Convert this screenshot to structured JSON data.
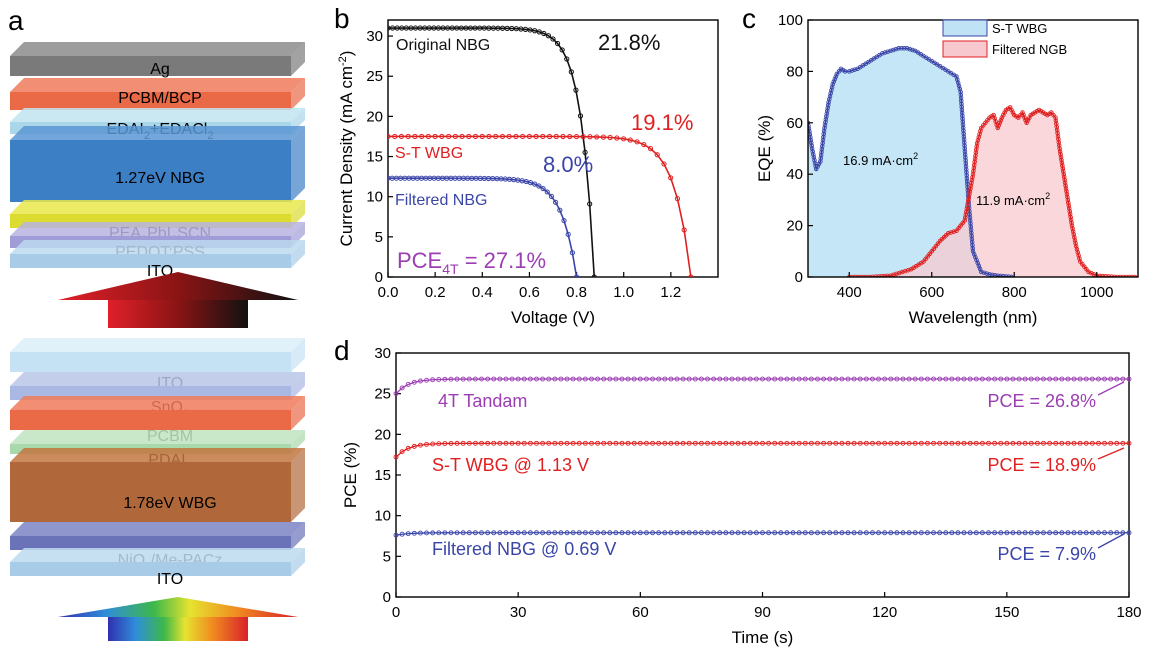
{
  "panel_a": {
    "letter": "a",
    "nbg_stack": [
      {
        "label": "Ag",
        "sub": "",
        "tail": ""
      },
      {
        "label": "PCBM/BCP",
        "sub": "",
        "tail": ""
      },
      {
        "label": "EDAI",
        "sub": "2",
        "tail": "+EDACl",
        "sub2": "2"
      },
      {
        "label": "1.27eV NBG",
        "sub": "",
        "tail": ""
      },
      {
        "label": "PEA",
        "sub": "2",
        "tail": "PbI",
        "sub2": "3",
        "tail2": "SCN"
      },
      {
        "label": "PEDOT:PSS",
        "sub": "",
        "tail": ""
      },
      {
        "label": "ITO",
        "sub": "",
        "tail": ""
      }
    ],
    "wbg_stack": [
      {
        "label": "ITO",
        "sub": "",
        "tail": ""
      },
      {
        "label": "SnO",
        "sub": "2",
        "tail": ""
      },
      {
        "label": "PCBM",
        "sub": "",
        "tail": ""
      },
      {
        "label": "PDAI",
        "sub": "2",
        "tail": ""
      },
      {
        "label": "1.78eV WBG",
        "sub": "",
        "tail": ""
      },
      {
        "label": "NiO",
        "sub": "x",
        "tail": "/Me-PACz"
      },
      {
        "label": "ITO",
        "sub": "",
        "tail": ""
      }
    ],
    "colors": {
      "ag": "#8c8c8c",
      "pcbm": "#f07a5a",
      "edai": "#bfe4f0",
      "nbg": "#3d7fc4",
      "pea": "#e8e84a",
      "pedot": "#b7b3e0",
      "ito": "#bcd9ef",
      "sno2": "#b9c6e8",
      "pdai": "#bfe3c0",
      "wbg": "#b0683a",
      "nio": "#7b83c4"
    }
  },
  "chart_data": [
    {
      "panel": "b",
      "type": "line",
      "xlabel": "Voltage (V)",
      "ylabel": "Current Density (mA cm",
      "ylabel_sup": "-2",
      "ylabel_tail": ")",
      "xlim": [
        0,
        1.4
      ],
      "ylim": [
        0,
        32
      ],
      "xticks": [
        0.0,
        0.2,
        0.4,
        0.6,
        0.8,
        1.0,
        1.2
      ],
      "xtick_labels": [
        "0.0",
        "0.2",
        "0.4",
        "0.6",
        "0.8",
        "1.0",
        "1.2"
      ],
      "yticks": [
        0,
        5,
        10,
        15,
        20,
        25,
        30
      ],
      "series": [
        {
          "name": "Original NBG",
          "color": "#111111",
          "jsc": 31.0,
          "voc": 0.875,
          "n": 1.6,
          "x_end": 0.875
        },
        {
          "name": "S-T WBG",
          "color": "#e02020",
          "jsc": 17.5,
          "voc": 1.285,
          "n": 2.0,
          "x_end": 1.285
        },
        {
          "name": "Filtered NBG",
          "color": "#3a45a8",
          "jsc": 12.3,
          "voc": 0.8,
          "n": 1.8,
          "x_end": 0.8
        }
      ],
      "annotations": [
        {
          "text": "21.8%",
          "color": "#111111"
        },
        {
          "text": "19.1%",
          "color": "#e02020"
        },
        {
          "text": "8.0%",
          "color": "#3a45a8"
        }
      ],
      "pce_label": "PCE",
      "pce_sub": "4T",
      "pce_value": " = 27.1%",
      "pce_color": "#9b3db3"
    },
    {
      "panel": "c",
      "type": "area",
      "xlabel": "Wavelength (nm)",
      "ylabel": "EQE (%)",
      "xlim": [
        300,
        1100
      ],
      "ylim": [
        0,
        100
      ],
      "xticks": [
        400,
        600,
        800,
        1000
      ],
      "yticks": [
        0,
        20,
        40,
        60,
        80,
        100
      ],
      "legend": [
        {
          "name": "S-T WBG",
          "fill": "#bfe3f5",
          "stroke": "#3a45a8"
        },
        {
          "name": "Filtered NGB",
          "fill": "#f7c9cf",
          "stroke": "#e02020"
        }
      ],
      "legend_position": "top-right",
      "series": [
        {
          "name": "S-T WBG",
          "x": [
            300,
            310,
            320,
            330,
            340,
            350,
            360,
            370,
            380,
            390,
            400,
            420,
            440,
            460,
            480,
            500,
            520,
            540,
            560,
            580,
            600,
            620,
            640,
            660,
            670,
            680,
            690,
            700,
            720,
            740,
            760,
            780,
            800
          ],
          "y": [
            60,
            50,
            42,
            45,
            58,
            68,
            75,
            79,
            81,
            80,
            80,
            81,
            83,
            85,
            87,
            88,
            89,
            89,
            88,
            86,
            84,
            82,
            80,
            78,
            72,
            50,
            28,
            10,
            2,
            1,
            0.5,
            0.2,
            0
          ]
        },
        {
          "name": "Filtered NGB",
          "x": [
            400,
            450,
            500,
            550,
            580,
            600,
            620,
            640,
            660,
            680,
            700,
            710,
            720,
            730,
            740,
            750,
            760,
            770,
            780,
            790,
            800,
            810,
            820,
            830,
            840,
            850,
            860,
            870,
            880,
            890,
            900,
            910,
            920,
            930,
            940,
            950,
            960,
            980,
            1000,
            1050,
            1100
          ],
          "y": [
            0,
            0,
            0.5,
            3,
            6,
            10,
            14,
            17,
            18,
            22,
            40,
            52,
            58,
            60,
            62,
            63,
            58,
            62,
            65,
            66,
            63,
            62,
            64,
            60,
            63,
            64,
            65,
            64,
            63,
            64,
            62,
            50,
            40,
            30,
            20,
            12,
            6,
            2,
            0.5,
            0,
            0
          ]
        }
      ],
      "annotations": [
        {
          "text": "16.9 mA·cm",
          "sup": "2"
        },
        {
          "text": "11.9 mA·cm",
          "sup": "2"
        }
      ]
    },
    {
      "panel": "d",
      "type": "line",
      "xlabel": "Time (s)",
      "ylabel": "PCE (%)",
      "xlim": [
        0,
        180
      ],
      "ylim": [
        0,
        30
      ],
      "xticks": [
        0,
        30,
        60,
        90,
        120,
        150,
        180
      ],
      "yticks": [
        0,
        5,
        10,
        15,
        20,
        25,
        30
      ],
      "series": [
        {
          "name": "4T Tandam",
          "color": "#9b3db3",
          "start": 25.0,
          "plateau": 26.8
        },
        {
          "name": "S-T WBG @ 1.13 V",
          "color": "#e02020",
          "start": 17.2,
          "plateau": 18.9
        },
        {
          "name": "Filtered NBG @ 0.69 V",
          "color": "#3a45a8",
          "start": 7.6,
          "plateau": 7.9
        }
      ],
      "annotations": [
        {
          "text": "PCE = 26.8%",
          "color": "#9b3db3"
        },
        {
          "text": "PCE = 18.9%",
          "color": "#e02020"
        },
        {
          "text": "PCE = 7.9%",
          "color": "#3a45a8"
        }
      ]
    }
  ]
}
